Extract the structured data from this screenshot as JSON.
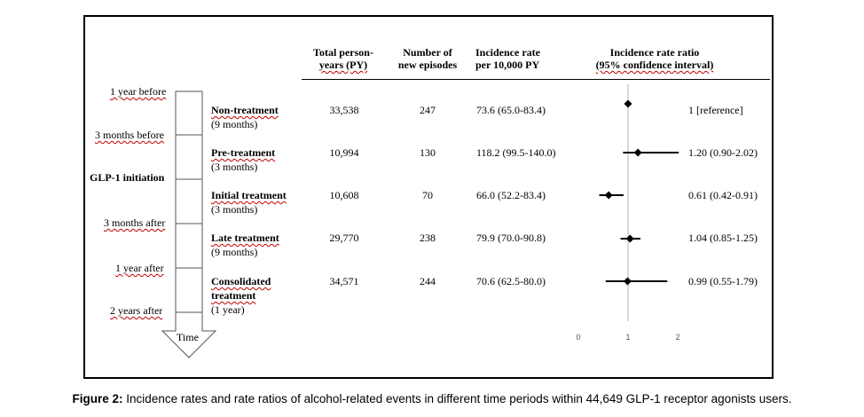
{
  "headers": {
    "person_years": [
      "Total person-",
      "years (PY)"
    ],
    "episodes": [
      "Number of",
      "new episodes"
    ],
    "rate": [
      "Incidence rate",
      "per 10,000 PY"
    ],
    "ratio": [
      "Incidence rate ratio",
      "(95% confidence interval)"
    ]
  },
  "timeline": {
    "labels": [
      "1 year before",
      "3 months before",
      "GLP-1 initiation",
      "3 months after",
      "1 year after",
      "2 years after"
    ],
    "axis_label": "Time"
  },
  "chart_data": {
    "type": "forest",
    "periods": [
      {
        "name": "Non-treatment",
        "duration": "(9 months)",
        "person_years": "33,538",
        "episodes": "247",
        "rate": "73.6 (65.0-83.4)",
        "ratio_text": "1 [reference]",
        "estimate": 1.0,
        "ci": null
      },
      {
        "name": "Pre-treatment",
        "duration": "(3 months)",
        "person_years": "10,994",
        "episodes": "130",
        "rate": "118.2 (99.5-140.0)",
        "ratio_text": "1.20 (0.90-2.02)",
        "estimate": 1.2,
        "ci": [
          0.9,
          2.02
        ]
      },
      {
        "name": "Initial treatment",
        "duration": "(3 months)",
        "person_years": "10,608",
        "episodes": "70",
        "rate": "66.0 (52.2-83.4)",
        "ratio_text": "0.61 (0.42-0.91)",
        "estimate": 0.61,
        "ci": [
          0.42,
          0.91
        ]
      },
      {
        "name": "Late treatment",
        "duration": "(9 months)",
        "person_years": "29,770",
        "episodes": "238",
        "rate": "79.9 (70.0-90.8)",
        "ratio_text": "1.04 (0.85-1.25)",
        "estimate": 1.04,
        "ci": [
          0.85,
          1.25
        ]
      },
      {
        "name": "Consolidated treatment",
        "duration": "(1 year)",
        "person_years": "34,571",
        "episodes": "244",
        "rate": "70.6 (62.5-80.0)",
        "ratio_text": "0.99 (0.55-1.79)",
        "estimate": 0.99,
        "ci": [
          0.55,
          1.79
        ]
      }
    ],
    "x_ticks": [
      "0",
      "1",
      "2"
    ],
    "xlim": [
      0,
      2
    ],
    "reference_line": 1
  },
  "caption": {
    "prefix": "Figure 2:",
    "text": " Incidence rates and rate ratios of alcohol-related events in different time periods within 44,649 GLP-1 receptor agonists users."
  }
}
